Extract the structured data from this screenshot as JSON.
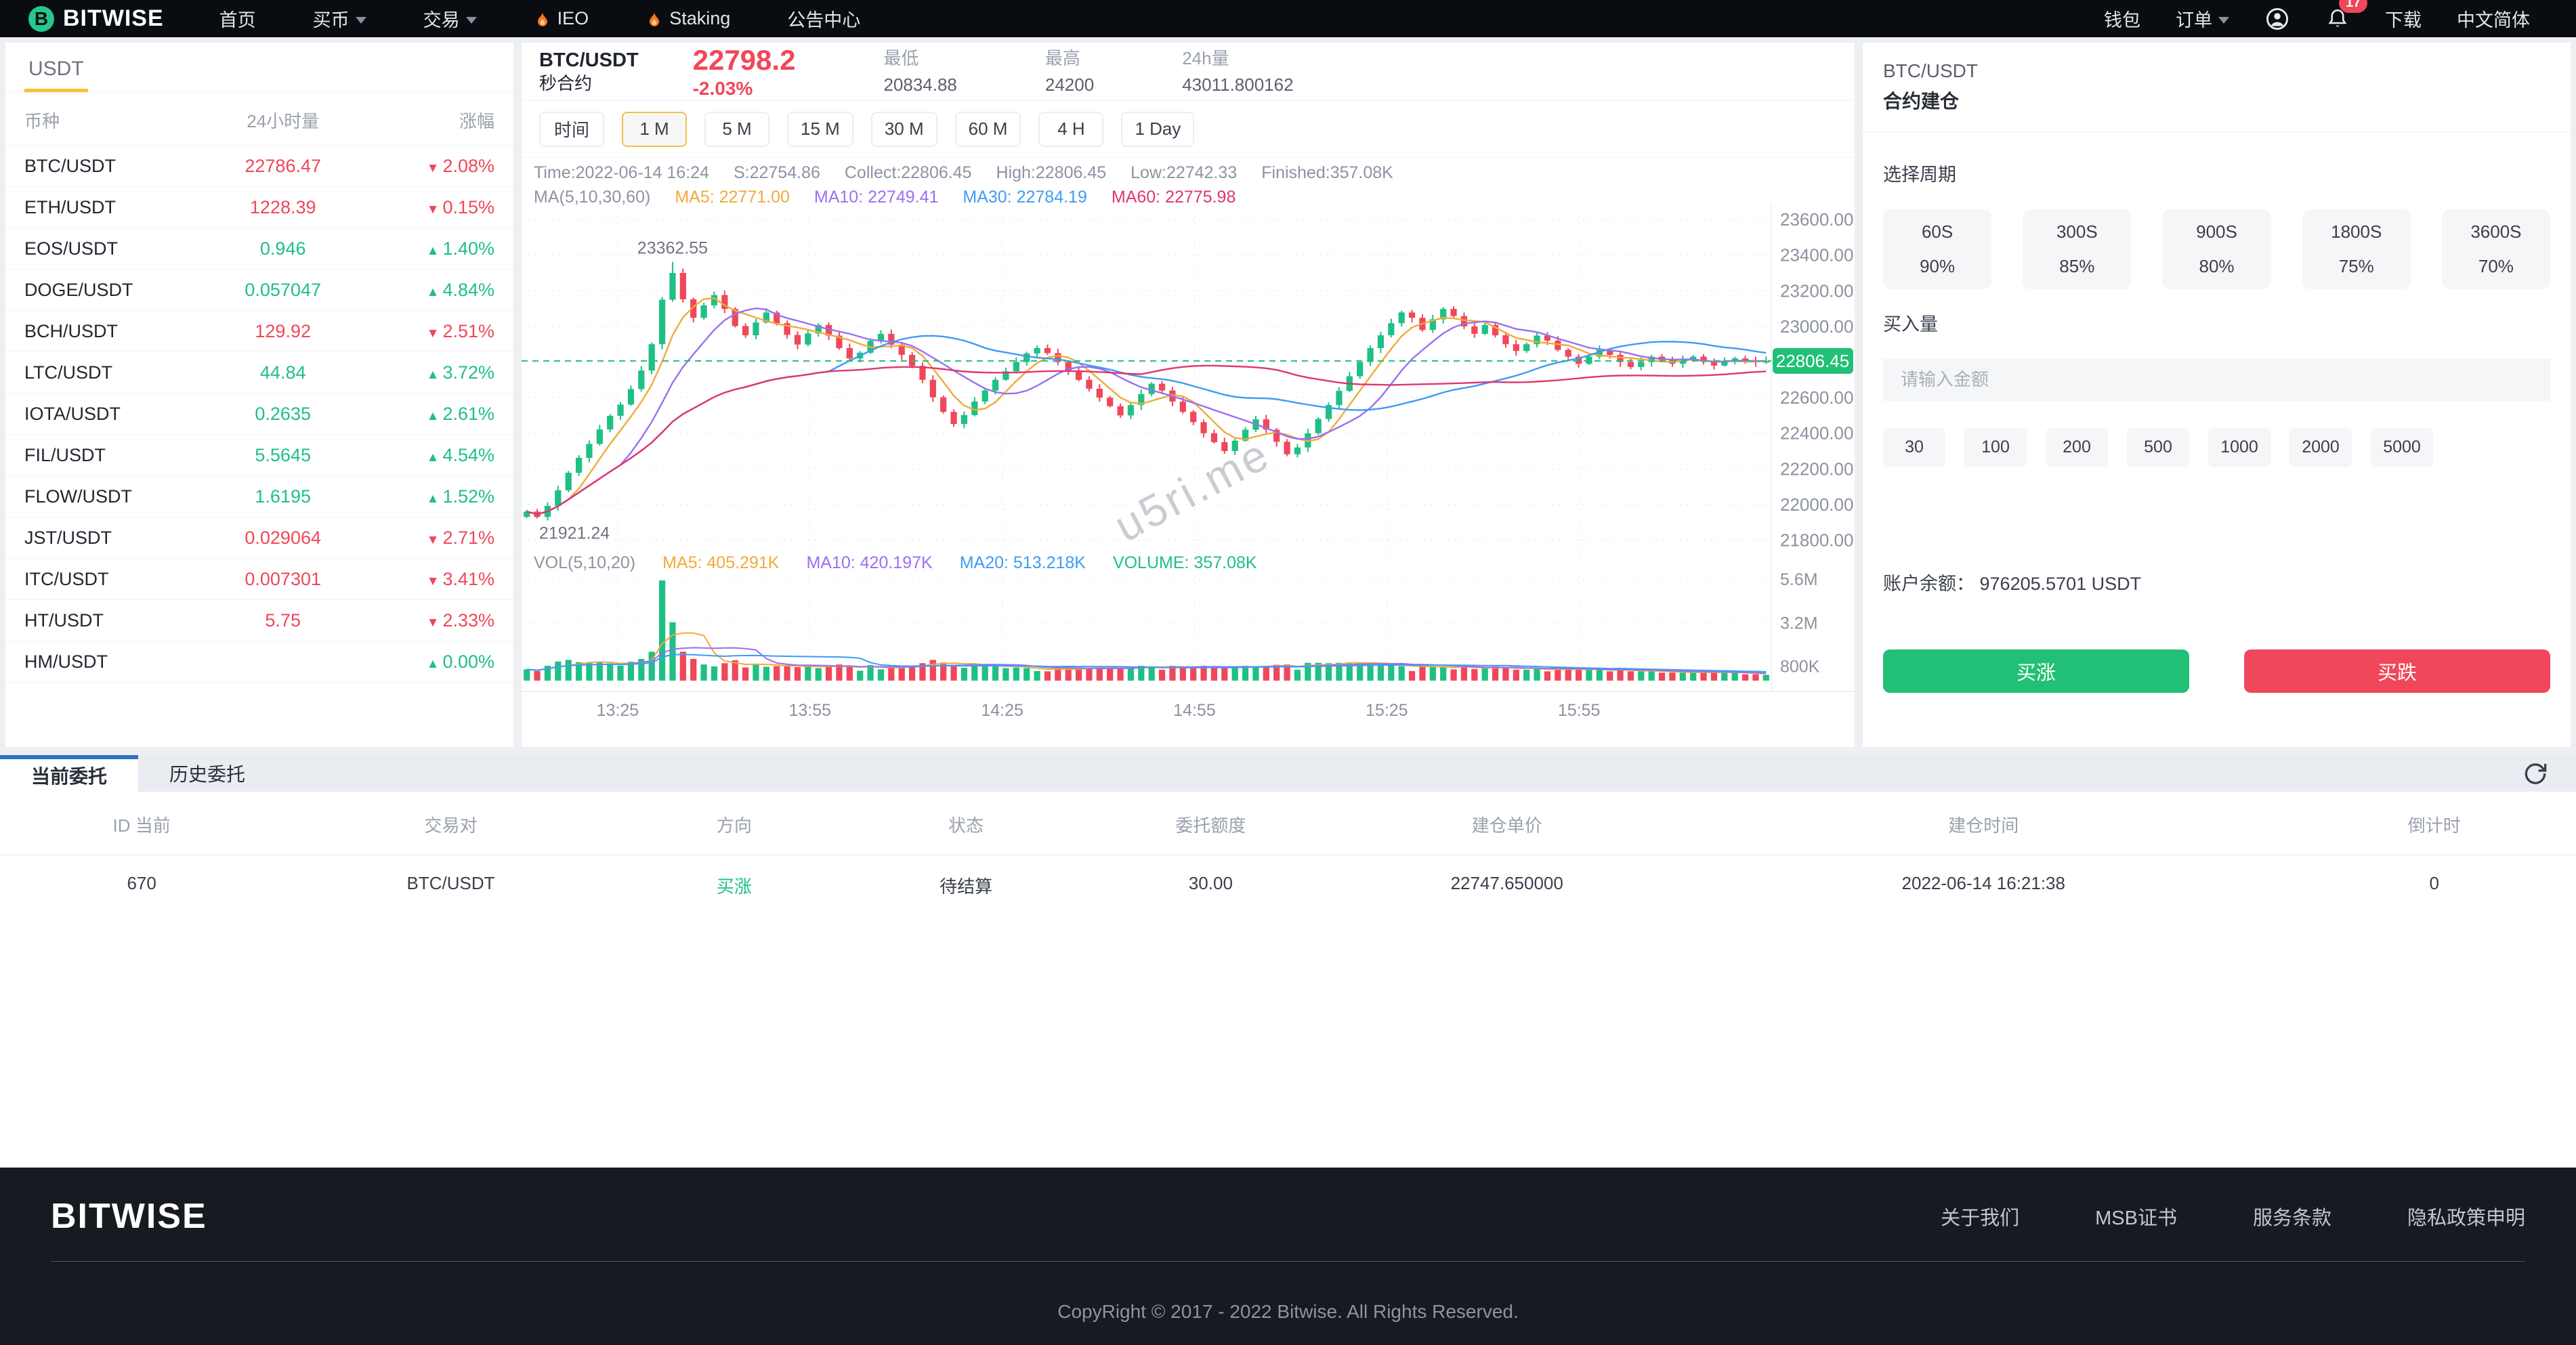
{
  "nav": {
    "brand": "BITWISE",
    "items": [
      {
        "label": "首页",
        "caret": false,
        "fire": false
      },
      {
        "label": "买币",
        "caret": true,
        "fire": false
      },
      {
        "label": "交易",
        "caret": true,
        "fire": false
      },
      {
        "label": "IEO",
        "caret": false,
        "fire": true
      },
      {
        "label": "Staking",
        "caret": false,
        "fire": true
      },
      {
        "label": "公告中心",
        "caret": false,
        "fire": false
      }
    ],
    "right_items": [
      {
        "label": "钱包",
        "caret": false,
        "icon": null
      },
      {
        "label": "订单",
        "caret": true,
        "icon": null
      },
      {
        "label": "",
        "caret": false,
        "icon": "user"
      },
      {
        "label": "",
        "caret": false,
        "icon": "bell",
        "badge": "17"
      },
      {
        "label": "下载",
        "caret": false,
        "icon": null
      },
      {
        "label": "中文简体",
        "caret": false,
        "icon": null
      }
    ]
  },
  "sidebar": {
    "tab": "USDT",
    "columns": [
      "币种",
      "24小时量",
      "涨幅"
    ],
    "rows": [
      {
        "pair": "BTC/USDT",
        "volume": "22786.47",
        "change": "2.08%",
        "dir": "down"
      },
      {
        "pair": "ETH/USDT",
        "volume": "1228.39",
        "change": "0.15%",
        "dir": "down"
      },
      {
        "pair": "EOS/USDT",
        "volume": "0.946",
        "change": "1.40%",
        "dir": "up"
      },
      {
        "pair": "DOGE/USDT",
        "volume": "0.057047",
        "change": "4.84%",
        "dir": "up"
      },
      {
        "pair": "BCH/USDT",
        "volume": "129.92",
        "change": "2.51%",
        "dir": "down"
      },
      {
        "pair": "LTC/USDT",
        "volume": "44.84",
        "change": "3.72%",
        "dir": "up"
      },
      {
        "pair": "IOTA/USDT",
        "volume": "0.2635",
        "change": "2.61%",
        "dir": "up"
      },
      {
        "pair": "FIL/USDT",
        "volume": "5.5645",
        "change": "4.54%",
        "dir": "up"
      },
      {
        "pair": "FLOW/USDT",
        "volume": "1.6195",
        "change": "1.52%",
        "dir": "up"
      },
      {
        "pair": "JST/USDT",
        "volume": "0.029064",
        "change": "2.71%",
        "dir": "down"
      },
      {
        "pair": "ITC/USDT",
        "volume": "0.007301",
        "change": "3.41%",
        "dir": "down"
      },
      {
        "pair": "HT/USDT",
        "volume": "5.75",
        "change": "2.33%",
        "dir": "down"
      },
      {
        "pair": "HM/USDT",
        "volume": "",
        "change": "0.00%",
        "dir": "up"
      }
    ]
  },
  "chart": {
    "symbol": "BTC/USDT",
    "type_label": "秒合约",
    "price": "22798.2",
    "change": "-2.03%",
    "stats": [
      {
        "label": "最低",
        "value": "20834.88"
      },
      {
        "label": "最高",
        "value": "24200"
      },
      {
        "label": "24h量",
        "value": "43011.800162"
      }
    ],
    "time_label": "时间",
    "intervals": [
      "1 M",
      "5 M",
      "15 M",
      "30 M",
      "60 M",
      "4 H",
      "1 Day"
    ],
    "selected_interval": 0,
    "info_line1": [
      {
        "t": "Time:2022-06-14 16:24",
        "c": "#8d93a1"
      },
      {
        "t": "S:22754.86",
        "c": "#8d93a1"
      },
      {
        "t": "Collect:22806.45",
        "c": "#8d93a1"
      },
      {
        "t": "High:22806.45",
        "c": "#8d93a1"
      },
      {
        "t": "Low:22742.33",
        "c": "#8d93a1"
      },
      {
        "t": "Finished:357.08K",
        "c": "#8d93a1"
      }
    ],
    "info_line2": [
      {
        "t": "MA(5,10,30,60)",
        "c": "#8d93a1"
      },
      {
        "t": "MA5: 22771.00",
        "c": "#f2a93b"
      },
      {
        "t": "MA10: 22749.41",
        "c": "#9a6ff2"
      },
      {
        "t": "MA30: 22784.19",
        "c": "#3f9bf5"
      },
      {
        "t": "MA60: 22775.98",
        "c": "#e0376c"
      }
    ],
    "vol_legend": [
      {
        "t": "VOL(5,10,20)",
        "c": "#8d93a1"
      },
      {
        "t": "MA5: 405.291K",
        "c": "#f2a93b"
      },
      {
        "t": "MA10: 420.197K",
        "c": "#9a6ff2"
      },
      {
        "t": "MA20: 513.218K",
        "c": "#3f9bf5"
      },
      {
        "t": "VOLUME: 357.08K",
        "c": "#1fc083"
      }
    ],
    "watermark": "u5ri.me"
  },
  "chart_data": {
    "type": "candlestick",
    "symbol": "BTC/USDT",
    "interval": "1M",
    "x_labels": [
      {
        "text": "13:25",
        "minute": 15
      },
      {
        "text": "13:55",
        "minute": 45
      },
      {
        "text": "14:25",
        "minute": 75
      },
      {
        "text": "14:55",
        "minute": 105
      },
      {
        "text": "15:25",
        "minute": 135
      },
      {
        "text": "15:55",
        "minute": 165
      }
    ],
    "minutes_span": 195,
    "y_ticks": [
      21800,
      22000,
      22200,
      22400,
      22600,
      22800,
      23000,
      23200,
      23400,
      23600
    ],
    "y_range": [
      21760,
      23650
    ],
    "volume_ticks": [
      {
        "text": "800K",
        "k": 800
      },
      {
        "text": "3.2M",
        "k": 3200
      },
      {
        "text": "5.6M",
        "k": 5600
      }
    ],
    "volume_max_k": 5600,
    "current_price": 22806.45,
    "current_price_label": "22806.45",
    "high_annotation": "23362.55",
    "high_annotation_value": 23362.55,
    "low_annotation": "21921.24",
    "low_annotation_value": 21921.24,
    "closes": [
      21960,
      21930,
      21992,
      22080,
      22178,
      22262,
      22340,
      22421,
      22498,
      22561,
      22648,
      22752,
      22900,
      23150,
      23300,
      23152,
      23048,
      23118,
      23176,
      23098,
      23002,
      22950,
      23022,
      23078,
      23018,
      22952,
      22898,
      22960,
      23008,
      22948,
      22878,
      22820,
      22852,
      22918,
      22958,
      22898,
      22840,
      22778,
      22700,
      22602,
      22520,
      22452,
      22502,
      22578,
      22640,
      22700,
      22748,
      22800,
      22848,
      22878,
      22850,
      22800,
      22752,
      22700,
      22650,
      22600,
      22552,
      22500,
      22558,
      22620,
      22678,
      22640,
      22578,
      22520,
      22462,
      22400,
      22350,
      22300,
      22358,
      22420,
      22478,
      22420,
      22352,
      22282,
      22320,
      22400,
      22480,
      22558,
      22638,
      22720,
      22800,
      22878,
      22950,
      23018,
      23078,
      23048,
      22980,
      23040,
      23098,
      23058,
      23000,
      22958,
      23008,
      22950,
      22900,
      22862,
      22900,
      22948,
      22920,
      22868,
      22830,
      22790,
      22830,
      22868,
      22840,
      22800,
      22772,
      22800,
      22830,
      22810,
      22790,
      22810,
      22830,
      22800,
      22780,
      22800,
      22820,
      22810,
      22800,
      22806.45
    ],
    "ma_periods": [
      5,
      10,
      30,
      60
    ],
    "ma_colors": [
      "#f2a93b",
      "#9a6ff2",
      "#3f9bf5",
      "#e0376c"
    ],
    "vol_ma_periods": [
      5,
      10,
      20
    ],
    "vol_ma_colors": [
      "#f2a93b",
      "#9a6ff2",
      "#3f9bf5"
    ],
    "up_color": "#1fc083",
    "down_color": "#f0475a",
    "grid": true,
    "legend_position": "top-left"
  },
  "trade": {
    "title": "BTC/USDT",
    "subtitle": "合约建仓",
    "period_label": "选择周期",
    "periods": [
      {
        "seconds": "60S",
        "rate": "90%"
      },
      {
        "seconds": "300S",
        "rate": "85%"
      },
      {
        "seconds": "900S",
        "rate": "80%"
      },
      {
        "seconds": "1800S",
        "rate": "75%"
      },
      {
        "seconds": "3600S",
        "rate": "70%"
      }
    ],
    "amount_label": "买入量",
    "amount_placeholder": "请输入金额",
    "amount_chips": [
      "30",
      "100",
      "200",
      "500",
      "1000",
      "2000",
      "5000"
    ],
    "balance_label": "账户余额：",
    "balance_value": "976205.5701 USDT",
    "buy_up": "买涨",
    "buy_down": "买跌"
  },
  "orders": {
    "tabs": [
      "当前委托",
      "历史委托"
    ],
    "active_tab": 0,
    "columns": [
      "ID 当前",
      "交易对",
      "方向",
      "状态",
      "委托额度",
      "建仓单价",
      "建仓时间",
      "倒计时"
    ],
    "rows": [
      {
        "id": "670",
        "pair": "BTC/USDT",
        "direction": "买涨",
        "direction_dir": "up",
        "status": "待结算",
        "amount": "30.00",
        "open_price": "22747.650000",
        "open_time": "2022-06-14 16:21:38",
        "countdown": "0"
      }
    ]
  },
  "footer": {
    "logo": "BITWISE",
    "links": [
      "关于我们",
      "MSB证书",
      "服务条款",
      "隐私政策申明"
    ],
    "copyright": "CopyRight © 2017 - 2022 Bitwise. All Rights Reserved."
  },
  "colors": {
    "up": "#1fc083",
    "down": "#f0475a",
    "accent_yellow": "#f5c331",
    "tab_blue": "#2d71c4",
    "nav_bg": "#090c10",
    "price_tag_bg": "#21c076"
  }
}
